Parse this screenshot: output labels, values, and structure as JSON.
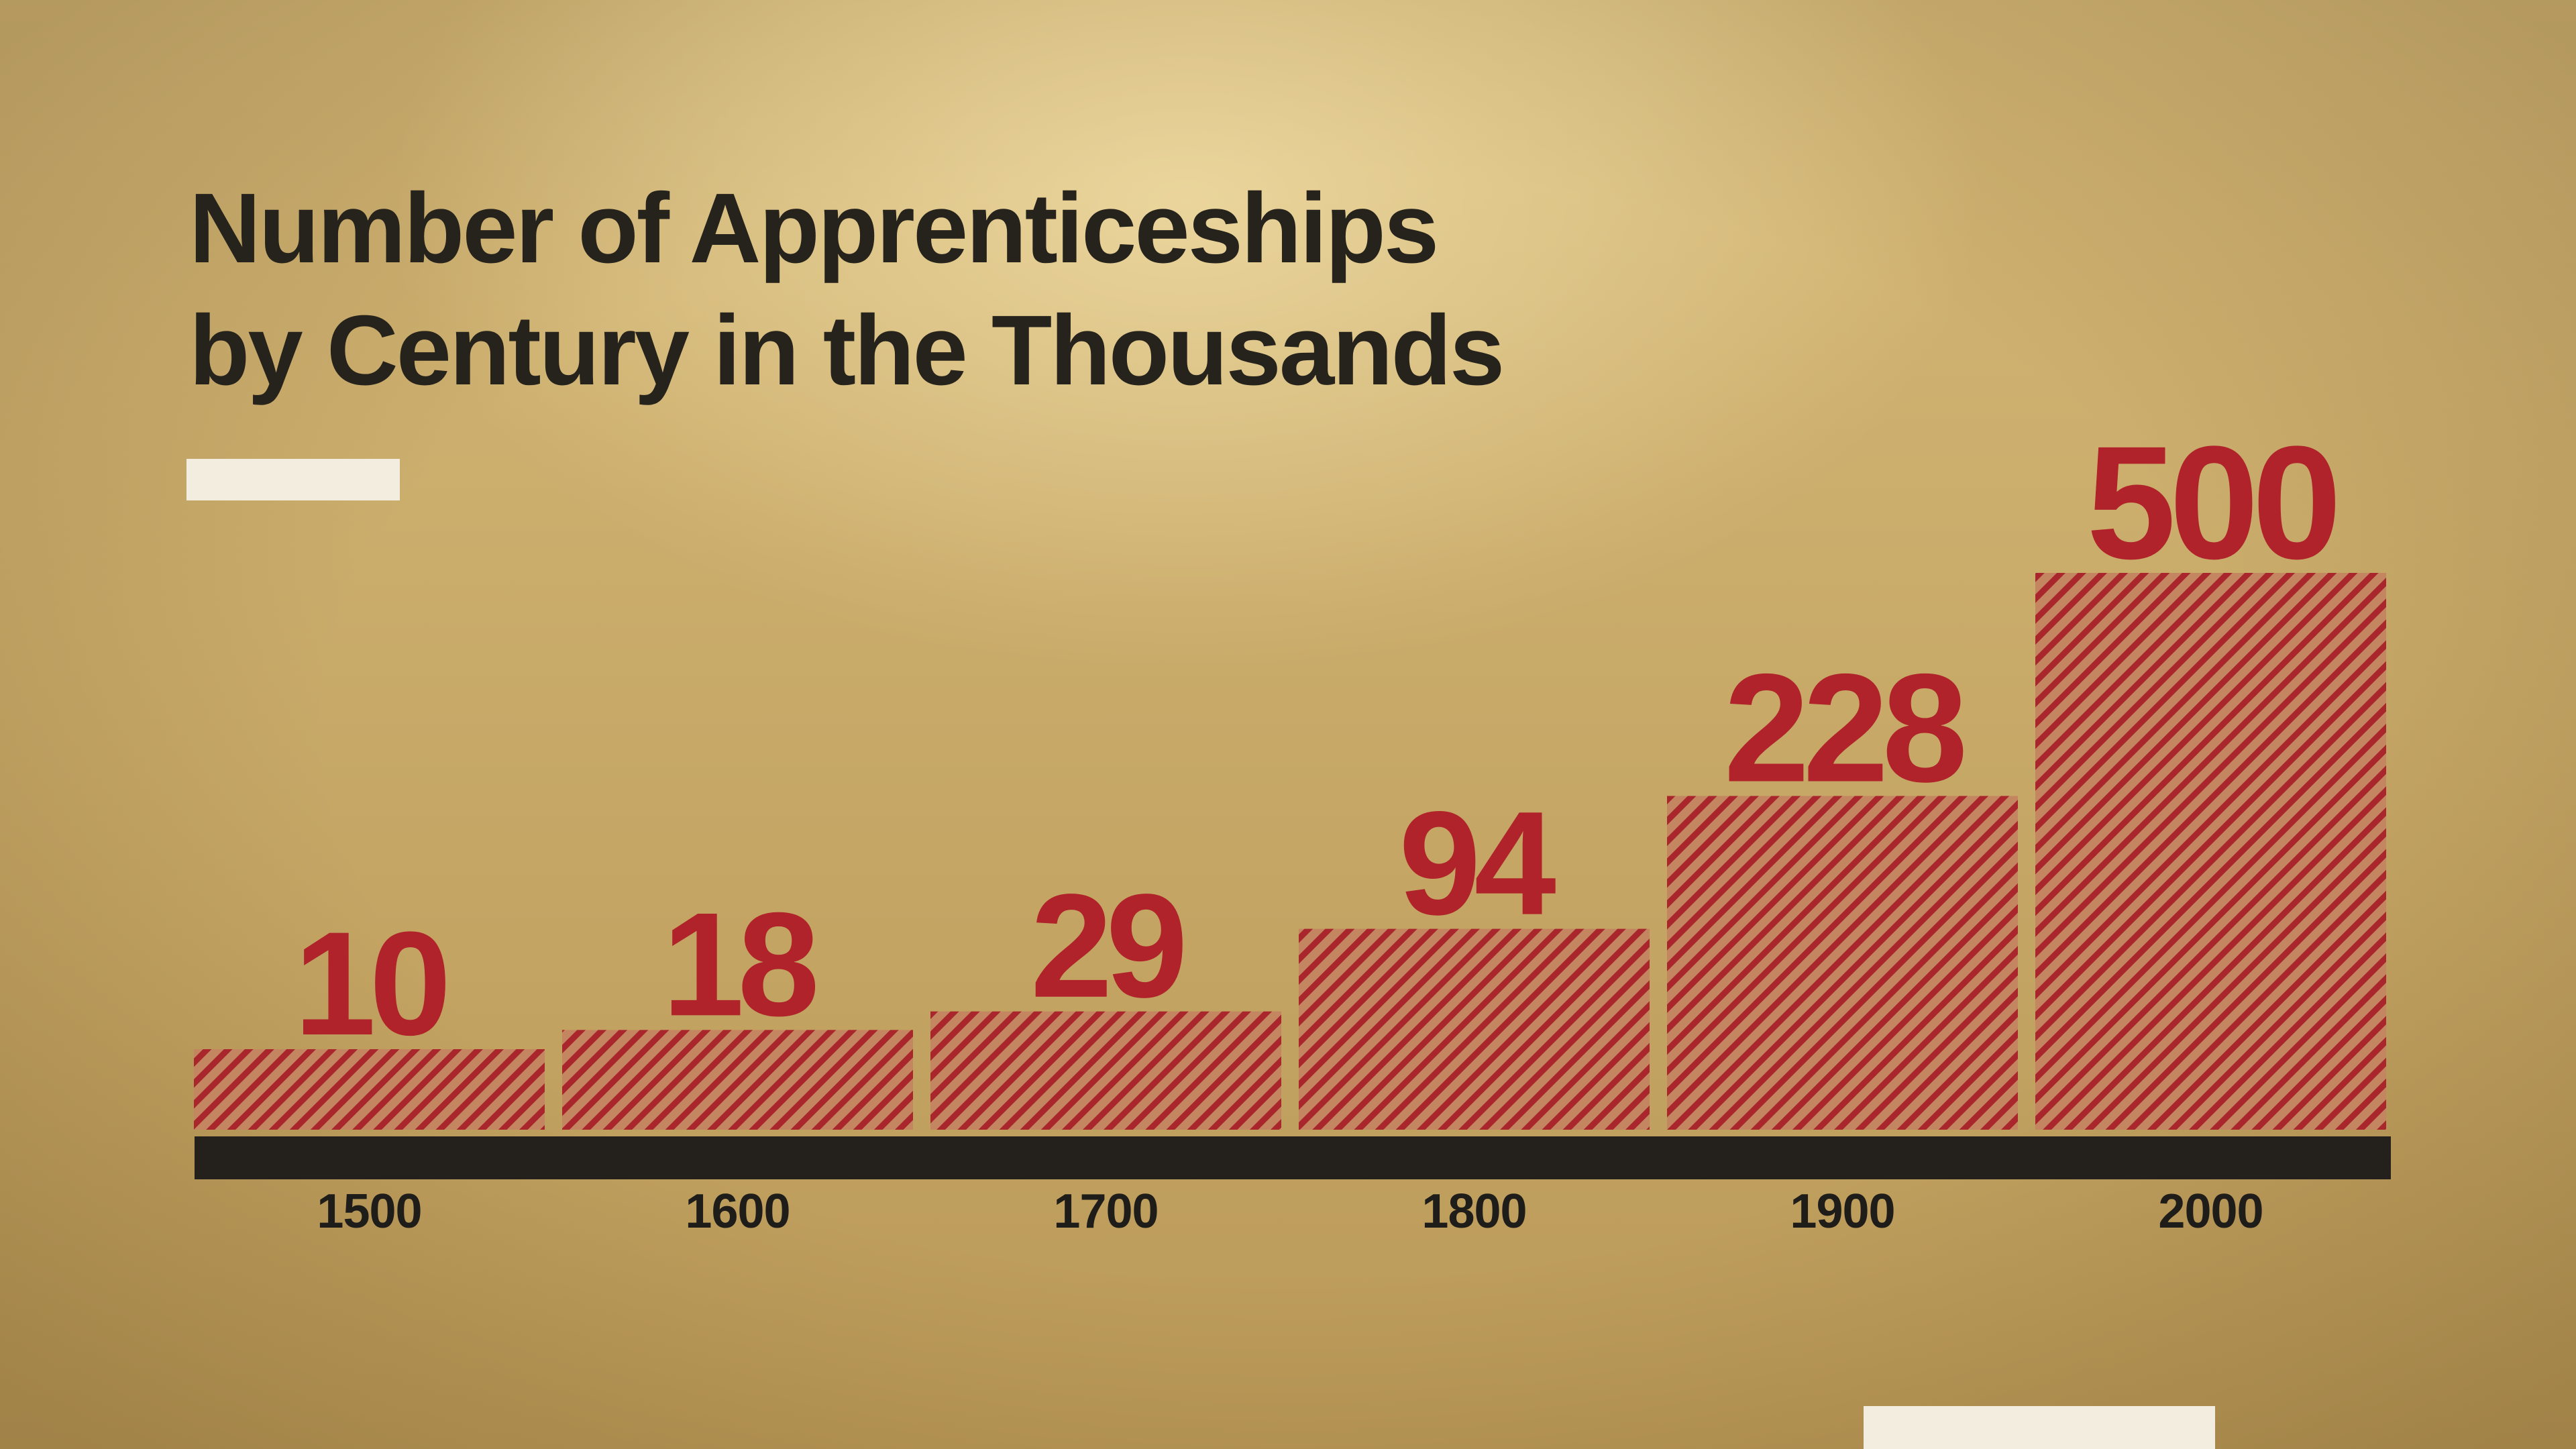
{
  "colors": {
    "background": "#c9aa68",
    "bar_fill": "#c48660",
    "bar_stripe": "#a8262c",
    "value_label": "#b0232a",
    "axis": "#24211d",
    "title": "#26221c",
    "accent": "#f3ede0"
  },
  "chart_data": {
    "type": "bar",
    "title_lines": [
      "Number of Apprenticeships",
      "by Century in the Thousands"
    ],
    "categories": [
      "1500",
      "1600",
      "1700",
      "1800",
      "1900",
      "2000"
    ],
    "values": [
      10,
      18,
      29,
      94,
      228,
      500
    ],
    "xlabel": "",
    "ylabel": "",
    "ylim": [
      0,
      500
    ],
    "grid": false,
    "legend": "none",
    "data_labels": true,
    "bar_pattern": "diagonal-stripes",
    "value_scale": "non-linear"
  }
}
